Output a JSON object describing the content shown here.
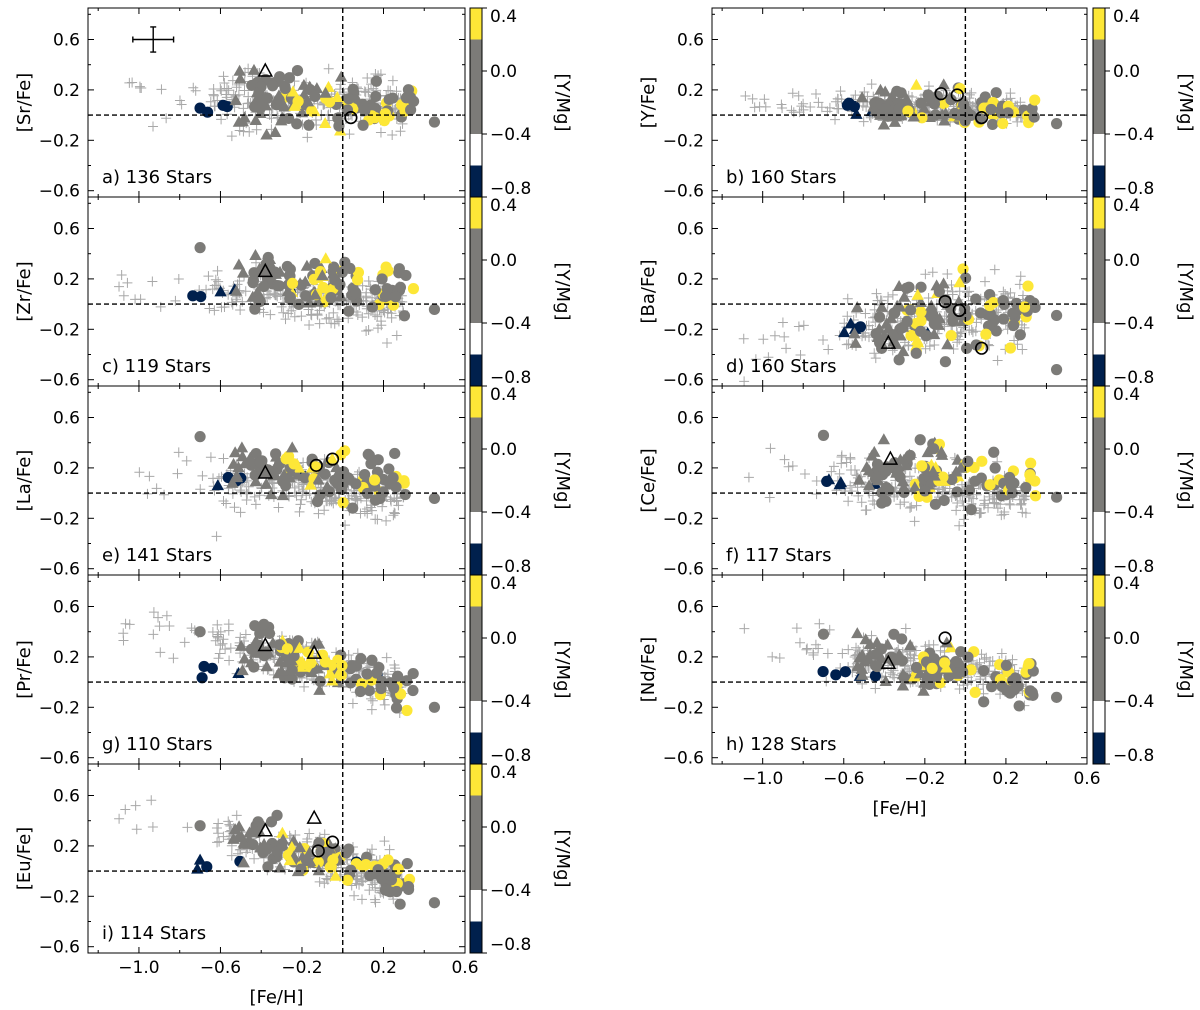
{
  "chart_data": {
    "type": "scatter",
    "title": "",
    "xlabel": "[Fe/H]",
    "xlim": [
      -1.25,
      0.6
    ],
    "ylim": [
      -0.65,
      0.85
    ],
    "x_ticks": [
      -1.0,
      -0.6,
      -0.2,
      0.2,
      0.6
    ],
    "x_tick_labels": [
      "−1.0",
      "−0.6",
      "−0.2",
      "0.2",
      "0.6"
    ],
    "y_ticks": [
      -0.6,
      -0.2,
      0.2,
      0.6
    ],
    "y_tick_labels": [
      "−0.6",
      "−0.2",
      "0.2",
      "0.6"
    ],
    "reference_lines": {
      "x": 0.0,
      "y": 0.0
    },
    "grid": false,
    "colorbar": {
      "label": "[Y/Mg]",
      "range": [
        -0.8,
        0.4
      ],
      "ticks": [
        -0.8,
        -0.4,
        0.0,
        0.4
      ],
      "tick_labels": [
        "−0.8",
        "−0.4",
        "0.0",
        "0.4"
      ],
      "bins": [
        {
          "from": -0.8,
          "to": -0.6,
          "color": "#00204d"
        },
        {
          "from": -0.6,
          "to": -0.4,
          "color": "#ffffff"
        },
        {
          "from": -0.4,
          "to": -0.2,
          "color": "#7c7b78"
        },
        {
          "from": -0.2,
          "to": 0.0,
          "color": "#7c7b78"
        },
        {
          "from": 0.0,
          "to": 0.2,
          "color": "#7c7b78"
        },
        {
          "from": 0.2,
          "to": 0.4,
          "color": "#fde737"
        }
      ]
    },
    "error_bar": {
      "panel": "a",
      "x": -0.93,
      "y": 0.6,
      "dx": 0.1,
      "dy": 0.1
    },
    "panels": [
      {
        "id": "a",
        "label": "a) 136 Stars",
        "ylabel": "[Sr/Fe]",
        "center": 0.1,
        "slope": -0.1,
        "spread": 0.11,
        "outlier": "dipped",
        "open_markers": [
          {
            "shape": "triangle",
            "x": -0.38,
            "y": 0.35
          },
          {
            "shape": "circle",
            "x": 0.04,
            "y": -0.02
          }
        ]
      },
      {
        "id": "b",
        "label": "b) 160 Stars",
        "ylabel": "[Y/Fe]",
        "center": 0.06,
        "slope": -0.05,
        "spread": 0.07,
        "outlier": "dipped",
        "open_markers": [
          {
            "shape": "circle",
            "x": -0.12,
            "y": 0.17
          },
          {
            "shape": "circle",
            "x": -0.04,
            "y": 0.16
          },
          {
            "shape": "circle",
            "x": 0.08,
            "y": -0.02
          }
        ]
      },
      {
        "id": "c",
        "label": "c) 119 Stars",
        "ylabel": "[Zr/Fe]",
        "center": 0.14,
        "slope": -0.15,
        "spread": 0.11,
        "outlier": "high",
        "open_markers": [
          {
            "shape": "triangle",
            "x": -0.38,
            "y": 0.26
          }
        ]
      },
      {
        "id": "d",
        "label": "d) 160 Stars",
        "ylabel": "[Ba/Fe]",
        "center": -0.1,
        "slope": 0.2,
        "spread": 0.16,
        "outlier": "low",
        "open_markers": [
          {
            "shape": "circle",
            "x": -0.1,
            "y": 0.02
          },
          {
            "shape": "circle",
            "x": -0.03,
            "y": -0.05
          },
          {
            "shape": "circle",
            "x": 0.08,
            "y": -0.35
          },
          {
            "shape": "triangle",
            "x": -0.38,
            "y": -0.31
          }
        ]
      },
      {
        "id": "e",
        "label": "e) 141 Stars",
        "ylabel": "[La/Fe]",
        "center": 0.14,
        "slope": -0.15,
        "spread": 0.11,
        "outlier": "high",
        "open_markers": [
          {
            "shape": "circle",
            "x": -0.13,
            "y": 0.22
          },
          {
            "shape": "circle",
            "x": -0.05,
            "y": 0.27
          },
          {
            "shape": "triangle",
            "x": -0.38,
            "y": 0.16
          }
        ]
      },
      {
        "id": "f",
        "label": "f) 117 Stars",
        "ylabel": "[Ce/Fe]",
        "center": 0.15,
        "slope": -0.15,
        "spread": 0.11,
        "outlier": "high",
        "open_markers": [
          {
            "shape": "triangle",
            "x": -0.37,
            "y": 0.27
          }
        ]
      },
      {
        "id": "g",
        "label": "g) 110 Stars",
        "ylabel": "[Pr/Fe]",
        "center": 0.12,
        "slope": -0.4,
        "spread": 0.1,
        "outlier": "high",
        "open_markers": [
          {
            "shape": "triangle",
            "x": -0.38,
            "y": 0.29
          },
          {
            "shape": "triangle",
            "x": -0.14,
            "y": 0.23
          }
        ]
      },
      {
        "id": "h",
        "label": "h) 128 Stars",
        "ylabel": "[Nd/Fe]",
        "center": 0.1,
        "slope": -0.22,
        "spread": 0.1,
        "outlier": "high",
        "open_markers": [
          {
            "shape": "circle",
            "x": -0.1,
            "y": 0.35
          },
          {
            "shape": "triangle",
            "x": -0.38,
            "y": 0.15
          }
        ]
      },
      {
        "id": "i",
        "label": "i) 114 Stars",
        "ylabel": "[Eu/Fe]",
        "center": 0.08,
        "slope": -0.42,
        "spread": 0.1,
        "outlier": "high",
        "open_markers": [
          {
            "shape": "triangle",
            "x": -0.38,
            "y": 0.32
          },
          {
            "shape": "triangle",
            "x": -0.14,
            "y": 0.42
          },
          {
            "shape": "circle",
            "x": -0.12,
            "y": 0.16
          },
          {
            "shape": "circle",
            "x": -0.05,
            "y": 0.23
          }
        ]
      }
    ],
    "marker_legend": {
      "plus": "comparison sample (grey crosses)",
      "triangle": "filled triangles coloured by [Y/Mg]",
      "circle": "filled circles coloured by [Y/Mg]"
    }
  }
}
